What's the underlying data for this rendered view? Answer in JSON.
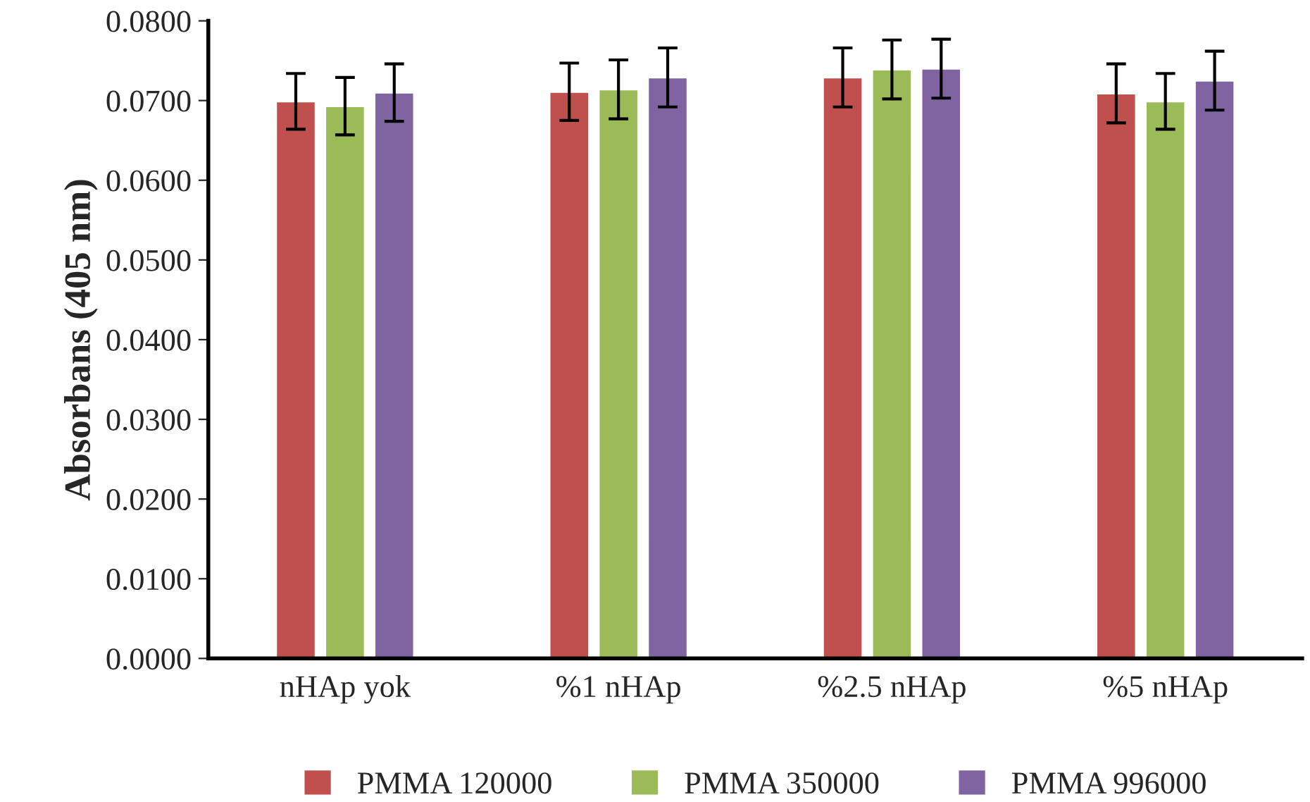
{
  "chart_data": {
    "type": "bar",
    "ylabel": "Absorbans (405 nm)",
    "categories": [
      "nHAp yok",
      "%1 nHAp",
      "%2.5 nHAp",
      "%5 nHAp"
    ],
    "series": [
      {
        "name": "PMMA 120000",
        "color": "#c0504d",
        "values": [
          0.0699,
          0.0711,
          0.0729,
          0.0709
        ],
        "errors": [
          0.0035,
          0.0036,
          0.0037,
          0.0037
        ]
      },
      {
        "name": "PMMA 350000",
        "color": "#9bbb59",
        "values": [
          0.0693,
          0.0714,
          0.0739,
          0.0699
        ],
        "errors": [
          0.0036,
          0.0037,
          0.0037,
          0.0035
        ]
      },
      {
        "name": "PMMA 996000",
        "color": "#8064a2",
        "values": [
          0.071,
          0.0729,
          0.074,
          0.0725
        ],
        "errors": [
          0.0036,
          0.0037,
          0.0037,
          0.0037
        ]
      }
    ],
    "ylim": [
      0,
      0.08
    ],
    "yticks": [
      {
        "value": 0,
        "label": "0.0000"
      },
      {
        "value": 0.01,
        "label": "0.0100"
      },
      {
        "value": 0.02,
        "label": "0.0200"
      },
      {
        "value": 0.03,
        "label": "0.0300"
      },
      {
        "value": 0.04,
        "label": "0.0400"
      },
      {
        "value": 0.05,
        "label": "0.0500"
      },
      {
        "value": 0.06,
        "label": "0.0600"
      },
      {
        "value": 0.07,
        "label": "0.0700"
      },
      {
        "value": 0.08,
        "label": "0.0800"
      }
    ],
    "grid": false,
    "legend": "bottom"
  }
}
